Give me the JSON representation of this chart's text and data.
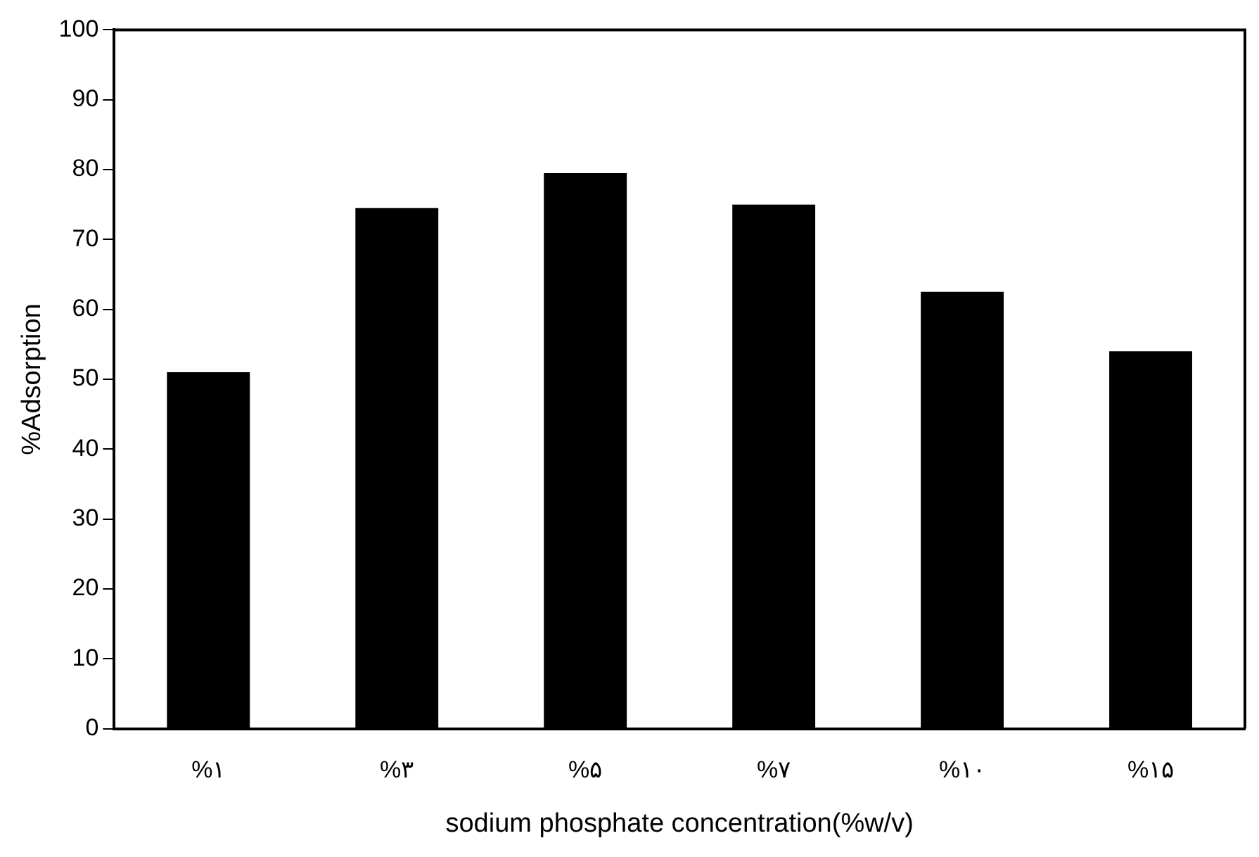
{
  "chart_data": {
    "type": "bar",
    "xlabel": "sodium phosphate concentration(%w/v)",
    "ylabel": "%Adsorption",
    "categories": [
      "%۱",
      "%۳",
      "%۵",
      "%۷",
      "%۱۰",
      "%۱۵"
    ],
    "values": [
      51,
      74.5,
      79.5,
      75,
      62.5,
      54
    ],
    "color": "#000000",
    "ylim": [
      0,
      100
    ],
    "yticks": [
      0,
      10,
      20,
      30,
      40,
      50,
      60,
      70,
      80,
      90,
      100
    ],
    "grid": false,
    "legend": false
  }
}
